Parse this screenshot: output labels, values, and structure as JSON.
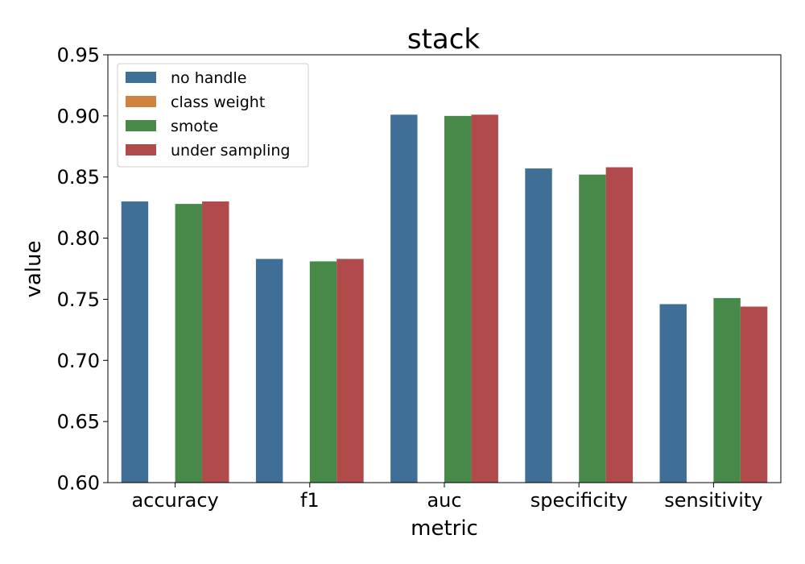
{
  "chart_data": {
    "type": "bar",
    "title": "stack",
    "xlabel": "metric",
    "ylabel": "value",
    "ylim": [
      0.6,
      0.95
    ],
    "yticks": [
      "0.60",
      "0.65",
      "0.70",
      "0.75",
      "0.80",
      "0.85",
      "0.90",
      "0.95"
    ],
    "categories": [
      "accuracy",
      "f1",
      "auc",
      "specificity",
      "sensitivity"
    ],
    "series": [
      {
        "name": "no handle",
        "color": "#3f6f97",
        "values": [
          0.83,
          0.783,
          0.901,
          0.857,
          0.746
        ]
      },
      {
        "name": "class weight",
        "color": "#d0823f",
        "values": [
          null,
          null,
          null,
          null,
          null
        ]
      },
      {
        "name": "smote",
        "color": "#478949",
        "values": [
          0.828,
          0.781,
          0.9,
          0.852,
          0.751
        ]
      },
      {
        "name": "under sampling",
        "color": "#b14b4b",
        "values": [
          0.83,
          0.783,
          0.901,
          0.858,
          0.744
        ]
      }
    ],
    "legend_position": "top-left",
    "grid": false
  }
}
